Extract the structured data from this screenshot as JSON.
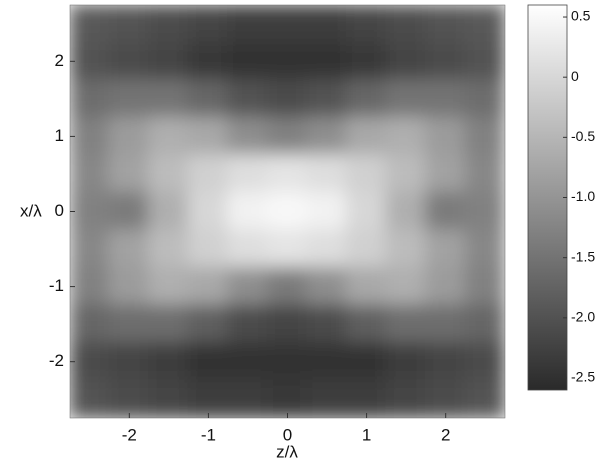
{
  "chart_data": {
    "type": "heatmap",
    "xlabel": "z/λ",
    "ylabel": "x/λ",
    "x": [
      -2.5,
      -2.0,
      -1.5,
      -1.0,
      -0.5,
      0,
      0.5,
      1.0,
      1.5,
      2.0,
      2.5
    ],
    "y": [
      2.5,
      2.0,
      1.5,
      1.0,
      0.5,
      0,
      -0.5,
      -1.0,
      -1.5,
      -2.0,
      -2.5
    ],
    "values": [
      [
        -1.9,
        -2.0,
        -2.1,
        -2.2,
        -2.3,
        -2.3,
        -2.3,
        -2.2,
        -2.1,
        -2.0,
        -1.9
      ],
      [
        -2.0,
        -2.1,
        -2.2,
        -2.4,
        -2.5,
        -2.5,
        -2.5,
        -2.4,
        -2.2,
        -2.1,
        -2.0
      ],
      [
        -1.6,
        -1.5,
        -1.5,
        -1.7,
        -2.0,
        -2.1,
        -2.0,
        -1.7,
        -1.5,
        -1.5,
        -1.6
      ],
      [
        -1.3,
        -0.9,
        -0.6,
        -0.7,
        -1.1,
        -1.3,
        -1.1,
        -0.7,
        -0.6,
        -0.9,
        -1.3
      ],
      [
        -1.2,
        -0.8,
        -0.4,
        -0.1,
        0.1,
        0.2,
        0.1,
        -0.1,
        -0.4,
        -0.8,
        -1.2
      ],
      [
        -1.3,
        -1.4,
        -0.6,
        0.0,
        0.4,
        0.5,
        0.4,
        0.0,
        -0.6,
        -1.4,
        -1.3
      ],
      [
        -1.2,
        -0.8,
        -0.4,
        -0.1,
        0.1,
        0.2,
        0.1,
        -0.1,
        -0.4,
        -0.8,
        -1.2
      ],
      [
        -1.3,
        -0.9,
        -0.6,
        -0.7,
        -1.1,
        -1.4,
        -1.1,
        -0.7,
        -0.6,
        -0.9,
        -1.3
      ],
      [
        -1.7,
        -1.6,
        -1.6,
        -1.8,
        -2.1,
        -2.2,
        -2.1,
        -1.8,
        -1.6,
        -1.6,
        -1.7
      ],
      [
        -2.1,
        -2.2,
        -2.3,
        -2.5,
        -2.5,
        -2.5,
        -2.5,
        -2.5,
        -2.3,
        -2.2,
        -2.1
      ],
      [
        -2.0,
        -2.1,
        -2.2,
        -2.3,
        -2.3,
        -2.4,
        -2.3,
        -2.3,
        -2.2,
        -2.1,
        -2.0
      ]
    ],
    "xlim": [
      -2.75,
      2.75
    ],
    "ylim": [
      -2.75,
      2.75
    ],
    "xticks": [
      -2,
      -1,
      0,
      1,
      2
    ],
    "yticks": [
      2,
      1,
      0,
      -1,
      -2
    ],
    "clim": [
      -2.6,
      0.6
    ],
    "cticks": [
      0.5,
      0,
      -0.5,
      {
        "value": -1.0,
        "label": "-1.0"
      },
      -1.5,
      {
        "value": -2.0,
        "label": "-2.0"
      },
      -2.5
    ]
  }
}
